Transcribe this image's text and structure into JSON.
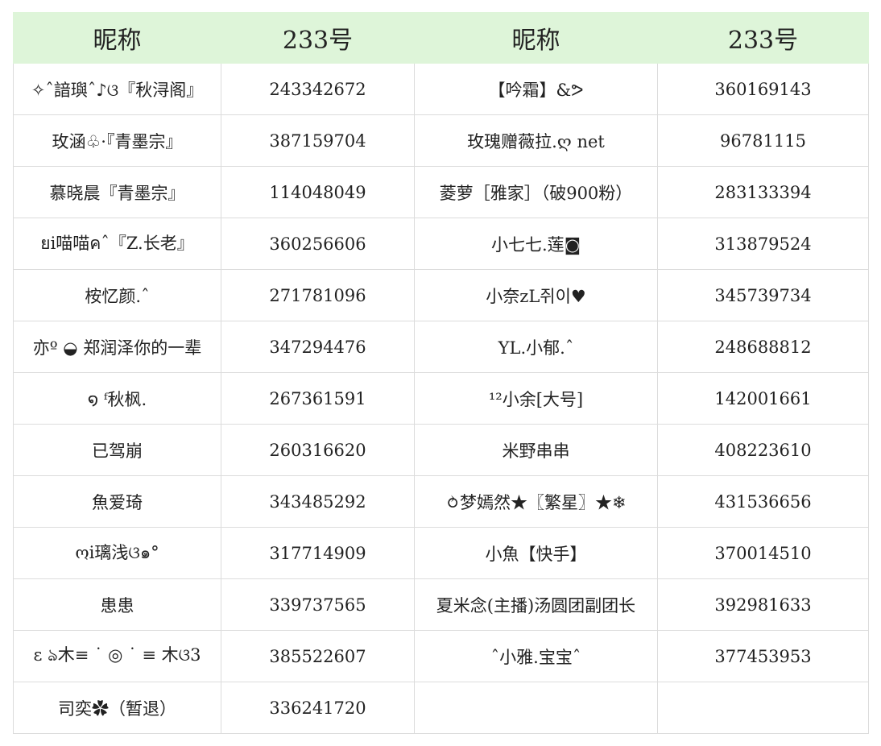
{
  "table": {
    "headers": [
      "昵称",
      "233号",
      "昵称",
      "233号"
    ],
    "rows": [
      [
        "✧ˆ諳璵ˆ♪ଓ『秋浔阁』",
        "243342672",
        "【吟霜】&ᕗ",
        "360169143"
      ],
      [
        "玫涵♧·『青墨宗』",
        "387159704",
        "玫瑰赠薇拉.ღ net",
        "96781115"
      ],
      [
        "慕晓晨『青墨宗』",
        "114048049",
        "菱萝［雅家］（破900粉）",
        "283133394"
      ],
      [
        "ยi喵喵คˆ『Z.长老』",
        "360256606",
        "小七七.莲◙",
        "313879524"
      ],
      [
        "桉忆颜.ˆ",
        "271781096",
        "小奈zL쥐이♥",
        "345739734"
      ],
      [
        "亦º ◒ 郑润泽你的一辈",
        "347294476",
        "YL.小郁.ˆ",
        "248688812"
      ],
      [
        "໑ ᶠ秋枫.",
        "267361591",
        "¹²小余[大号]",
        "142001661"
      ],
      [
        "已驾崩",
        "260316620",
        "米野串串",
        "408223610"
      ],
      [
        "魚爱琦",
        "343485292",
        "⥁梦嫣然★〖繁星〗★❄",
        "431536656"
      ],
      [
        "ოi璃浅ଓ๑°",
        "317714909",
        "小魚【快手】",
        "370014510"
      ],
      [
        "患患",
        "339737565",
        "夏米念(主播)汤圆团副团长",
        "392981633"
      ],
      [
        "ɛ ঌ木≡ ˙ ◎ ˙ ≡ 木ଓ3",
        "385522607",
        "ˆ小雅.宝宝ˆ",
        "377453953"
      ],
      [
        "司奕✿（暂退）",
        "336241720"
      ]
    ]
  }
}
